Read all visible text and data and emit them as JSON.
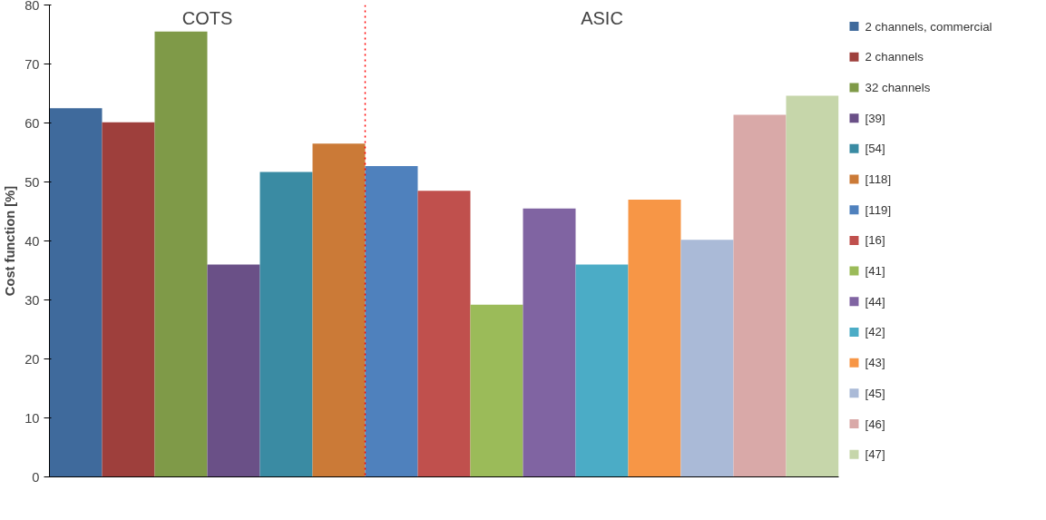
{
  "chart_data": {
    "type": "bar",
    "stacked": true,
    "ylabel": "Cost function [%]",
    "categories": [
      null,
      null,
      null,
      null,
      null,
      null,
      null,
      null,
      null,
      null,
      null,
      null,
      null,
      null,
      null
    ],
    "series": [
      {
        "name": "2 channels, commercial",
        "color": "#3f6a9c",
        "values": [
          62.5,
          null,
          null,
          null,
          null,
          null,
          null,
          null,
          null,
          null,
          null,
          null,
          null,
          null,
          null
        ]
      },
      {
        "name": "2 channels",
        "color": "#9e3f3c",
        "values": [
          null,
          60.1,
          null,
          null,
          null,
          null,
          null,
          null,
          null,
          null,
          null,
          null,
          null,
          null,
          null
        ]
      },
      {
        "name": "32 channels",
        "color": "#7f9a48",
        "values": [
          null,
          null,
          75.5,
          null,
          null,
          null,
          null,
          null,
          null,
          null,
          null,
          null,
          null,
          null,
          null
        ]
      },
      {
        "name": "[39]",
        "color": "#6a5087",
        "values": [
          null,
          null,
          null,
          36.0,
          null,
          null,
          null,
          null,
          null,
          null,
          null,
          null,
          null,
          null,
          null
        ]
      },
      {
        "name": "[54]",
        "color": "#3a8ba3",
        "values": [
          null,
          null,
          null,
          null,
          51.7,
          null,
          null,
          null,
          null,
          null,
          null,
          null,
          null,
          null,
          null
        ]
      },
      {
        "name": "[118]",
        "color": "#cb7a37",
        "values": [
          null,
          null,
          null,
          null,
          null,
          56.5,
          null,
          null,
          null,
          null,
          null,
          null,
          null,
          null,
          null
        ]
      },
      {
        "name": "[119]",
        "color": "#4f81bd",
        "values": [
          null,
          null,
          null,
          null,
          null,
          null,
          52.7,
          null,
          null,
          null,
          null,
          null,
          null,
          null,
          null
        ]
      },
      {
        "name": "[16]",
        "color": "#c0504d",
        "values": [
          null,
          null,
          null,
          null,
          null,
          null,
          null,
          48.5,
          null,
          null,
          null,
          null,
          null,
          null,
          null
        ]
      },
      {
        "name": "[41]",
        "color": "#9bbb59",
        "values": [
          null,
          null,
          null,
          null,
          null,
          null,
          null,
          null,
          29.2,
          null,
          null,
          null,
          null,
          null,
          null
        ]
      },
      {
        "name": "[44]",
        "color": "#8064a2",
        "values": [
          null,
          null,
          null,
          null,
          null,
          null,
          null,
          null,
          null,
          45.5,
          null,
          null,
          null,
          null,
          null
        ]
      },
      {
        "name": "[42]",
        "color": "#4bacc6",
        "values": [
          null,
          null,
          null,
          null,
          null,
          null,
          null,
          null,
          null,
          null,
          36.0,
          null,
          null,
          null,
          null
        ]
      },
      {
        "name": "[43]",
        "color": "#f79646",
        "values": [
          null,
          null,
          null,
          null,
          null,
          null,
          null,
          null,
          null,
          null,
          null,
          47.0,
          null,
          null,
          null
        ]
      },
      {
        "name": "[45]",
        "color": "#aabad7",
        "values": [
          null,
          null,
          null,
          null,
          null,
          null,
          null,
          null,
          null,
          null,
          null,
          null,
          40.2,
          null,
          null
        ]
      },
      {
        "name": "[46]",
        "color": "#d9a9a8",
        "values": [
          null,
          null,
          null,
          null,
          null,
          null,
          null,
          null,
          null,
          null,
          null,
          null,
          null,
          61.4,
          null
        ]
      },
      {
        "name": "[47]",
        "color": "#c6d6aa",
        "values": [
          null,
          null,
          null,
          null,
          null,
          null,
          null,
          null,
          null,
          null,
          null,
          null,
          null,
          null,
          64.6
        ]
      }
    ],
    "ylim": [
      0,
      80
    ],
    "yticks": [
      0,
      10,
      20,
      30,
      40,
      50,
      60,
      70,
      80
    ],
    "annotations": [
      "COTS",
      "ASIC"
    ],
    "legend": "right",
    "tick_labels": "y",
    "grid": false
  }
}
